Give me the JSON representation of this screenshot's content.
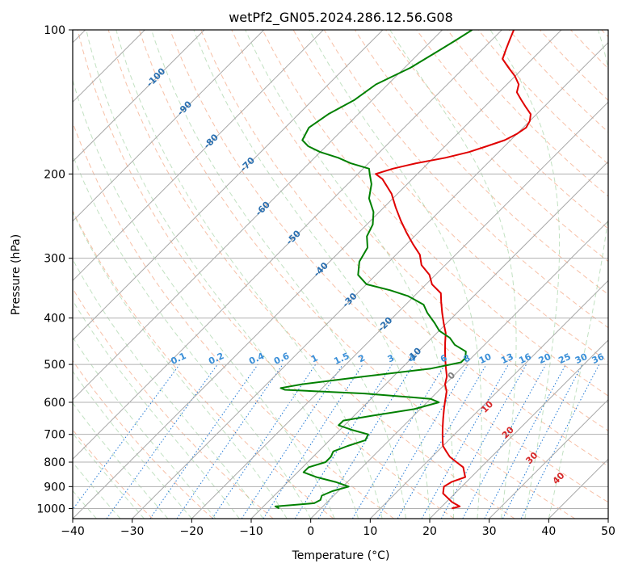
{
  "chart_data": {
    "type": "skew-t",
    "title": "wetPf2_GN05.2024.286.12.56.G08",
    "xlabel": "Temperature (°C)",
    "ylabel": "Pressure (hPa)",
    "xlim": [
      -40,
      50
    ],
    "ylim": [
      1050,
      100
    ],
    "yscale": "log",
    "grid": true,
    "x_ticks": [
      "−40",
      "−30",
      "−20",
      "−10",
      "0",
      "10",
      "20",
      "30",
      "40",
      "50"
    ],
    "y_ticks": [
      "1000",
      "900",
      "800",
      "700",
      "600",
      "500",
      "400",
      "300",
      "200",
      "100"
    ],
    "mixing_ratio_labels": [
      "0.1",
      "0.2",
      "0.4",
      "0.6",
      "1",
      "1.5",
      "2",
      "3",
      "4",
      "6",
      "8",
      "10",
      "13",
      "16",
      "20",
      "25",
      "30",
      "36"
    ],
    "isotherm_labels": [
      "-100",
      "-90",
      "-80",
      "-70",
      "-60",
      "-50",
      "-40",
      "-30",
      "-20",
      "-10"
    ],
    "moist_adiabat_labels": [
      "0",
      "10",
      "20",
      "30",
      "40"
    ],
    "series": [
      {
        "role": "temperature",
        "color": "#e00000",
        "points": [
          [
            1000,
            22
          ],
          [
            990,
            23
          ],
          [
            970,
            21
          ],
          [
            950,
            19.5
          ],
          [
            930,
            18
          ],
          [
            900,
            17
          ],
          [
            880,
            17.5
          ],
          [
            860,
            19
          ],
          [
            840,
            18
          ],
          [
            820,
            17
          ],
          [
            800,
            15
          ],
          [
            780,
            13
          ],
          [
            760,
            11.5
          ],
          [
            740,
            10
          ],
          [
            720,
            9
          ],
          [
            700,
            8
          ],
          [
            680,
            7
          ],
          [
            650,
            5.5
          ],
          [
            620,
            4
          ],
          [
            600,
            3
          ],
          [
            570,
            1.5
          ],
          [
            550,
            0
          ],
          [
            530,
            -1
          ],
          [
            510,
            -2.5
          ],
          [
            490,
            -4
          ],
          [
            470,
            -5.5
          ],
          [
            450,
            -7
          ],
          [
            430,
            -8.5
          ],
          [
            410,
            -10.5
          ],
          [
            390,
            -12.5
          ],
          [
            370,
            -14.5
          ],
          [
            355,
            -16
          ],
          [
            340,
            -19
          ],
          [
            325,
            -21
          ],
          [
            310,
            -24
          ],
          [
            295,
            -26
          ],
          [
            280,
            -29
          ],
          [
            265,
            -32
          ],
          [
            250,
            -35
          ],
          [
            235,
            -38
          ],
          [
            220,
            -41
          ],
          [
            205,
            -45
          ],
          [
            200,
            -47
          ],
          [
            195,
            -45
          ],
          [
            190,
            -42
          ],
          [
            185,
            -38
          ],
          [
            180,
            -35
          ],
          [
            175,
            -33
          ],
          [
            170,
            -31
          ],
          [
            165,
            -30
          ],
          [
            160,
            -29.5
          ],
          [
            155,
            -30
          ],
          [
            150,
            -31
          ],
          [
            145,
            -33
          ],
          [
            140,
            -35
          ],
          [
            135,
            -37
          ],
          [
            130,
            -38
          ],
          [
            125,
            -40
          ],
          [
            120,
            -42.5
          ],
          [
            115,
            -45
          ],
          [
            110,
            -46
          ],
          [
            105,
            -47
          ],
          [
            100,
            -48
          ]
        ]
      },
      {
        "role": "dewpoint",
        "color": "#008000",
        "points": [
          [
            1000,
            -7
          ],
          [
            990,
            -8
          ],
          [
            975,
            -2
          ],
          [
            960,
            -1.5
          ],
          [
            940,
            -2
          ],
          [
            920,
            -1
          ],
          [
            900,
            1
          ],
          [
            880,
            -2
          ],
          [
            860,
            -6
          ],
          [
            840,
            -9
          ],
          [
            820,
            -9
          ],
          [
            800,
            -7
          ],
          [
            780,
            -7
          ],
          [
            760,
            -7.5
          ],
          [
            740,
            -6
          ],
          [
            720,
            -4
          ],
          [
            700,
            -4.5
          ],
          [
            685,
            -8
          ],
          [
            670,
            -11
          ],
          [
            655,
            -11
          ],
          [
            640,
            -7
          ],
          [
            620,
            -1
          ],
          [
            600,
            2
          ],
          [
            590,
            0
          ],
          [
            575,
            -12
          ],
          [
            565,
            -26
          ],
          [
            560,
            -27
          ],
          [
            550,
            -24
          ],
          [
            530,
            -15
          ],
          [
            510,
            -5
          ],
          [
            495,
            -1
          ],
          [
            485,
            -1
          ],
          [
            470,
            -2
          ],
          [
            455,
            -5
          ],
          [
            440,
            -7
          ],
          [
            425,
            -10
          ],
          [
            410,
            -12
          ],
          [
            390,
            -15
          ],
          [
            375,
            -17
          ],
          [
            360,
            -21
          ],
          [
            350,
            -25
          ],
          [
            340,
            -30
          ],
          [
            325,
            -33
          ],
          [
            305,
            -35
          ],
          [
            285,
            -36
          ],
          [
            270,
            -38
          ],
          [
            255,
            -39
          ],
          [
            240,
            -41
          ],
          [
            225,
            -44
          ],
          [
            210,
            -46
          ],
          [
            200,
            -48
          ],
          [
            195,
            -49
          ],
          [
            190,
            -53
          ],
          [
            185,
            -56
          ],
          [
            180,
            -60
          ],
          [
            175,
            -63
          ],
          [
            170,
            -65
          ],
          [
            160,
            -66
          ],
          [
            150,
            -65
          ],
          [
            140,
            -63
          ],
          [
            130,
            -62
          ],
          [
            120,
            -59
          ],
          [
            110,
            -57
          ],
          [
            105,
            -56
          ],
          [
            100,
            -55
          ]
        ]
      }
    ]
  }
}
